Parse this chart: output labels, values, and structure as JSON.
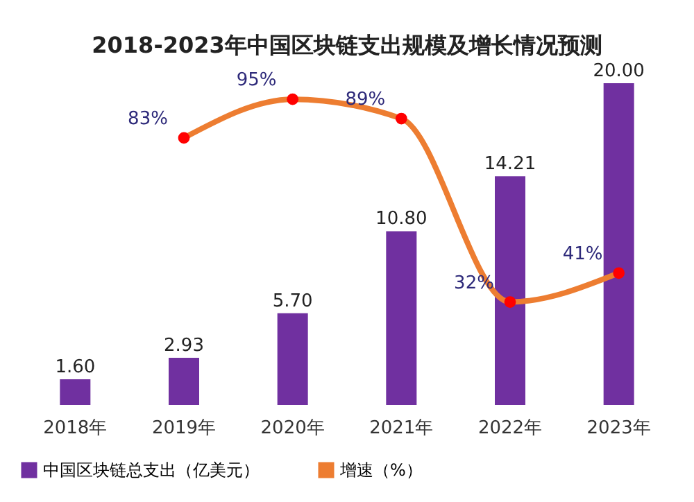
{
  "chart_data": {
    "type": "bar",
    "title": "2018-2023年中国区块链支出规模及增长情况预测",
    "categories": [
      "2018年",
      "2019年",
      "2020年",
      "2021年",
      "2022年",
      "2023年"
    ],
    "series": [
      {
        "name": "中国区块链总支出（亿美元）",
        "color": "#7030a0",
        "values": [
          1.6,
          2.93,
          5.7,
          10.8,
          14.21,
          20.0
        ],
        "value_labels": [
          "1.60",
          "2.93",
          "5.70",
          "10.80",
          "14.21",
          "20.00"
        ]
      },
      {
        "name": "增速（%）",
        "type": "line",
        "axis": "y2",
        "color": "#ed7d31",
        "values": [
          null,
          83,
          95,
          89,
          32,
          41
        ],
        "value_labels": [
          null,
          "83%",
          "95%",
          "89%",
          "32%",
          "41%"
        ]
      }
    ],
    "marker": "circle",
    "legend": "bottom",
    "tick_labels": "x",
    "grid": false
  }
}
